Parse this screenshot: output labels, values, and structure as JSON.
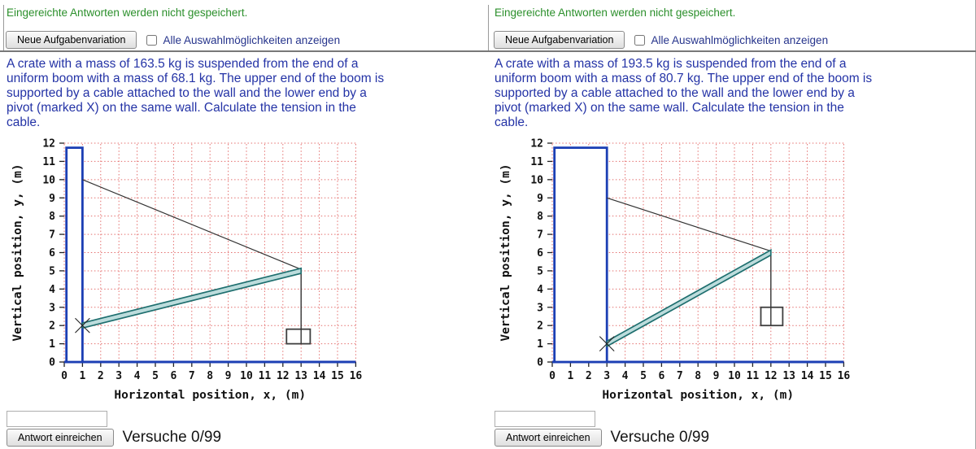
{
  "shared": {
    "notice": "Eingereichte Antworten werden nicht gespeichert.",
    "variation_button_label": "Neue Aufgabenvariation",
    "show_all_checkbox_label": "Alle Auswahlmöglichkeiten anzeigen",
    "submit_button_label": "Antwort einreichen",
    "attempts_text": "Versuche 0/99",
    "answer_input_value": ""
  },
  "panels": [
    {
      "problem_text": "A crate with a mass of 163.5 kg is suspended from the end of a\nuniform boom with a mass of 68.1 kg. The upper end of the boom is\nsupported by a cable attached to the wall and the lower end by a\npivot (marked X) on the same wall. Calculate the tension in the\ncable."
    },
    {
      "problem_text": "A crate with a mass of 193.5 kg is suspended from the end of a\nuniform boom with a mass of 80.7 kg. The upper end of the boom is\nsupported by a cable attached to the wall and the lower end by a\npivot (marked X) on the same wall. Calculate the tension in the\ncable."
    }
  ],
  "chart_data": [
    {
      "type": "diagram",
      "xlabel": "Horizontal position, x, (m)",
      "ylabel": "Vertical position, y, (m)",
      "xlim": [
        0,
        16
      ],
      "ylim": [
        0,
        12
      ],
      "xticks": [
        0,
        1,
        2,
        3,
        4,
        5,
        6,
        7,
        8,
        9,
        10,
        11,
        12,
        13,
        14,
        15,
        16
      ],
      "yticks": [
        0,
        1,
        2,
        3,
        4,
        5,
        6,
        7,
        8,
        9,
        10,
        11,
        12
      ],
      "grid": true,
      "wall": {
        "x0": 0.12,
        "x1": 1,
        "y0": 0,
        "y1": 11.75
      },
      "cable": {
        "x1": 1,
        "y1": 10,
        "x2": 13,
        "y2": 5.08
      },
      "boom": {
        "x1": 1,
        "y1": 2,
        "x2": 13,
        "y2": 5,
        "half_width": 0.14
      },
      "pivot": {
        "x": 1,
        "y": 2,
        "size": 0.4
      },
      "hanger": {
        "x": 13,
        "y_top": 5,
        "y_bottom": 1
      },
      "crate": {
        "x0": 12.2,
        "x1": 13.5,
        "y0": 1,
        "y1": 1.8
      },
      "colors": {
        "wall": "#1c3fb4",
        "grid": "#e4706f",
        "cable": "#333333",
        "boom_fill": "#bcdcdc",
        "boom_stroke": "#1f6f6f",
        "crate": "#3f3f3f"
      }
    },
    {
      "type": "diagram",
      "xlabel": "Horizontal position, x, (m)",
      "ylabel": "Vertical position, y, (m)",
      "xlim": [
        0,
        16
      ],
      "ylim": [
        0,
        12
      ],
      "xticks": [
        0,
        1,
        2,
        3,
        4,
        5,
        6,
        7,
        8,
        9,
        10,
        11,
        12,
        13,
        14,
        15,
        16
      ],
      "yticks": [
        0,
        1,
        2,
        3,
        4,
        5,
        6,
        7,
        8,
        9,
        10,
        11,
        12
      ],
      "grid": true,
      "wall": {
        "x0": 0.12,
        "x1": 3,
        "y0": 0,
        "y1": 11.75
      },
      "cable": {
        "x1": 3,
        "y1": 9,
        "x2": 12,
        "y2": 6.08
      },
      "boom": {
        "x1": 3,
        "y1": 1,
        "x2": 12,
        "y2": 6,
        "half_width": 0.14
      },
      "pivot": {
        "x": 3,
        "y": 1,
        "size": 0.4
      },
      "hanger": {
        "x": 12,
        "y_top": 6,
        "y_bottom": 2
      },
      "crate": {
        "x0": 11.45,
        "x1": 12.65,
        "y0": 2,
        "y1": 3
      },
      "colors": {
        "wall": "#1c3fb4",
        "grid": "#e4706f",
        "cable": "#333333",
        "boom_fill": "#bcdcdc",
        "boom_stroke": "#1f6f6f",
        "crate": "#3f3f3f"
      }
    }
  ]
}
